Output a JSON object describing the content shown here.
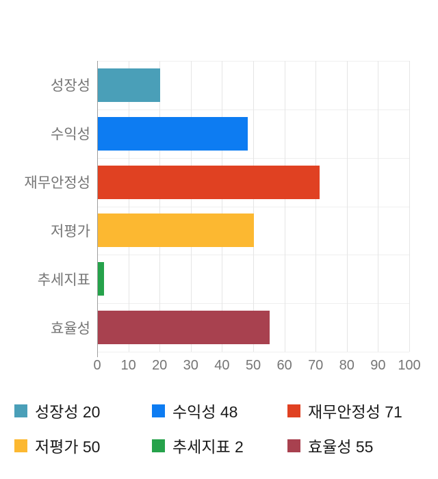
{
  "chart_data": {
    "type": "bar",
    "orientation": "horizontal",
    "title": "",
    "xlabel": "",
    "ylabel": "",
    "categories": [
      "성장성",
      "수익성",
      "재무안정성",
      "저평가",
      "추세지표",
      "효율성"
    ],
    "values": [
      20,
      48,
      71,
      50,
      2,
      55
    ],
    "colors": [
      "#4a9fb8",
      "#0d7cf2",
      "#e04122",
      "#fcb831",
      "#26a24b",
      "#a8414f"
    ],
    "xlim": [
      0,
      100
    ],
    "x_ticks": [
      0,
      10,
      20,
      30,
      40,
      50,
      60,
      70,
      80,
      90,
      100
    ],
    "grid": true,
    "legend_position": "bottom",
    "legend": [
      {
        "label": "성장성 20",
        "color": "#4a9fb8"
      },
      {
        "label": "수익성 48",
        "color": "#0d7cf2"
      },
      {
        "label": "재무안정성 71",
        "color": "#e04122"
      },
      {
        "label": "저평가 50",
        "color": "#fcb831"
      },
      {
        "label": "추세지표 2",
        "color": "#26a24b"
      },
      {
        "label": "효율성 55",
        "color": "#a8414f"
      }
    ],
    "axis_color": "#9e9e9e",
    "grid_color": "#efefef",
    "vgrid_color": "#e5e5e5",
    "label_color": "#757575",
    "legend_text_color": "#1a1a1a",
    "background_color": "#ffffff"
  }
}
